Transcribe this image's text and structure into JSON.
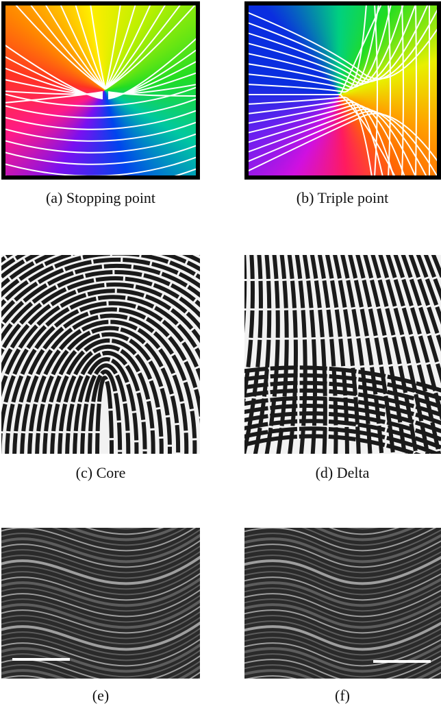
{
  "panels": [
    {
      "caption": "(a) Stopping point"
    },
    {
      "caption": "(b) Triple point"
    },
    {
      "caption": "(c) Core"
    },
    {
      "caption": "(d) Delta"
    },
    {
      "caption": "(e)"
    },
    {
      "caption": "(f)"
    }
  ]
}
